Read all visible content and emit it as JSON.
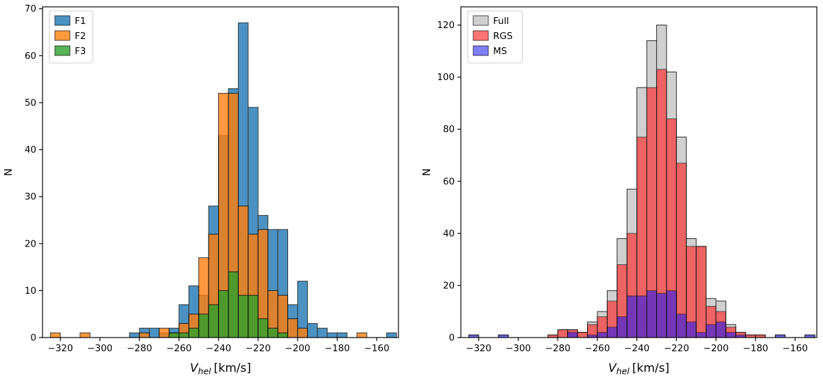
{
  "figure": {
    "background": "#ffffff",
    "panels": [
      "left-histogram",
      "right-histogram"
    ]
  },
  "chart_data": [
    {
      "type": "bar",
      "subtype": "overlaid-histogram",
      "panel": "left",
      "title": "",
      "ylabel": "N",
      "xlabel": {
        "variable": "V",
        "subscript": "hel",
        "units": "[km/s]"
      },
      "xlim": [
        -329,
        -149
      ],
      "ylim": [
        0,
        70.4
      ],
      "xticks": [
        -320,
        -300,
        -280,
        -260,
        -240,
        -220,
        -200,
        -180,
        -160
      ],
      "yticks": [
        0,
        10,
        20,
        30,
        40,
        50,
        60,
        70
      ],
      "bin_width": 5,
      "grid": false,
      "legend": {
        "position": "upper-left",
        "entries": [
          "F1",
          "F2",
          "F3"
        ]
      },
      "series": [
        {
          "name": "F1",
          "color": "#1f77b4",
          "opacity": 0.8,
          "bars": [
            [
              -285,
              1
            ],
            [
              -280,
              2
            ],
            [
              -275,
              2
            ],
            [
              -270,
              1
            ],
            [
              -265,
              2
            ],
            [
              -260,
              7
            ],
            [
              -255,
              11
            ],
            [
              -250,
              9
            ],
            [
              -245,
              28
            ],
            [
              -240,
              43
            ],
            [
              -235,
              53
            ],
            [
              -230,
              67
            ],
            [
              -225,
              49
            ],
            [
              -220,
              26
            ],
            [
              -215,
              23
            ],
            [
              -210,
              23
            ],
            [
              -205,
              7
            ],
            [
              -200,
              12
            ],
            [
              -195,
              3
            ],
            [
              -190,
              2
            ],
            [
              -185,
              1
            ],
            [
              -180,
              1
            ],
            [
              -155,
              1
            ]
          ]
        },
        {
          "name": "F2",
          "color": "#ff7f0e",
          "opacity": 0.8,
          "bars": [
            [
              -325,
              1
            ],
            [
              -310,
              1
            ],
            [
              -280,
              1
            ],
            [
              -270,
              2
            ],
            [
              -265,
              1
            ],
            [
              -260,
              3
            ],
            [
              -255,
              5
            ],
            [
              -250,
              17
            ],
            [
              -245,
              22
            ],
            [
              -240,
              52
            ],
            [
              -235,
              52
            ],
            [
              -230,
              28
            ],
            [
              -225,
              22
            ],
            [
              -220,
              23
            ],
            [
              -215,
              10
            ],
            [
              -210,
              9
            ],
            [
              -205,
              4
            ],
            [
              -200,
              2
            ],
            [
              -170,
              1
            ]
          ]
        },
        {
          "name": "F3",
          "color": "#2ca02c",
          "opacity": 0.8,
          "bars": [
            [
              -265,
              1
            ],
            [
              -260,
              1
            ],
            [
              -255,
              2
            ],
            [
              -250,
              5
            ],
            [
              -245,
              7
            ],
            [
              -240,
              10
            ],
            [
              -235,
              14
            ],
            [
              -230,
              9
            ],
            [
              -225,
              9
            ],
            [
              -220,
              4
            ],
            [
              -215,
              2
            ],
            [
              -210,
              1
            ]
          ]
        }
      ]
    },
    {
      "type": "bar",
      "subtype": "overlaid-histogram",
      "panel": "right",
      "title": "",
      "ylabel": "N",
      "xlabel": {
        "variable": "V",
        "subscript": "hel",
        "units": "[km/s]"
      },
      "xlim": [
        -329,
        -149
      ],
      "ylim": [
        0,
        127
      ],
      "xticks": [
        -320,
        -300,
        -280,
        -260,
        -240,
        -220,
        -200,
        -180,
        -160
      ],
      "yticks": [
        0,
        20,
        40,
        60,
        80,
        100,
        120
      ],
      "bin_width": 5,
      "grid": false,
      "legend": {
        "position": "upper-left",
        "entries": [
          "Full",
          "RGS",
          "MS"
        ]
      },
      "series": [
        {
          "name": "Full",
          "color": "#c8c8c8",
          "opacity": 0.85,
          "bars": [
            [
              -325,
              1
            ],
            [
              -310,
              1
            ],
            [
              -285,
              1
            ],
            [
              -280,
              3
            ],
            [
              -275,
              3
            ],
            [
              -270,
              2
            ],
            [
              -265,
              6
            ],
            [
              -260,
              10
            ],
            [
              -255,
              18
            ],
            [
              -250,
              38
            ],
            [
              -245,
              57
            ],
            [
              -240,
              96
            ],
            [
              -235,
              114
            ],
            [
              -230,
              120
            ],
            [
              -225,
              102
            ],
            [
              -220,
              77
            ],
            [
              -215,
              38
            ],
            [
              -210,
              35
            ],
            [
              -205,
              15
            ],
            [
              -200,
              14
            ],
            [
              -195,
              5
            ],
            [
              -190,
              2
            ],
            [
              -185,
              1
            ],
            [
              -180,
              1
            ],
            [
              -170,
              1
            ],
            [
              -155,
              1
            ]
          ]
        },
        {
          "name": "RGS",
          "color": "#ff2020",
          "opacity": 0.62,
          "bars": [
            [
              -285,
              1
            ],
            [
              -280,
              3
            ],
            [
              -275,
              3
            ],
            [
              -270,
              2
            ],
            [
              -265,
              5
            ],
            [
              -260,
              8
            ],
            [
              -255,
              14
            ],
            [
              -250,
              28
            ],
            [
              -245,
              40
            ],
            [
              -240,
              77
            ],
            [
              -235,
              96
            ],
            [
              -230,
              103
            ],
            [
              -225,
              84
            ],
            [
              -220,
              67
            ],
            [
              -215,
              35
            ],
            [
              -210,
              35
            ],
            [
              -205,
              12
            ],
            [
              -200,
              10
            ],
            [
              -195,
              4
            ],
            [
              -190,
              2
            ],
            [
              -185,
              1
            ],
            [
              -180,
              1
            ]
          ]
        },
        {
          "name": "MS",
          "color": "#1414ff",
          "opacity": 0.55,
          "bars": [
            [
              -325,
              1
            ],
            [
              -310,
              1
            ],
            [
              -275,
              2
            ],
            [
              -265,
              1
            ],
            [
              -260,
              2
            ],
            [
              -255,
              4
            ],
            [
              -250,
              8
            ],
            [
              -245,
              16
            ],
            [
              -240,
              16
            ],
            [
              -235,
              18
            ],
            [
              -230,
              17
            ],
            [
              -225,
              18
            ],
            [
              -220,
              9
            ],
            [
              -215,
              6
            ],
            [
              -210,
              2
            ],
            [
              -205,
              5
            ],
            [
              -200,
              6
            ],
            [
              -195,
              2
            ],
            [
              -190,
              1
            ],
            [
              -170,
              1
            ],
            [
              -155,
              1
            ]
          ]
        }
      ]
    }
  ]
}
